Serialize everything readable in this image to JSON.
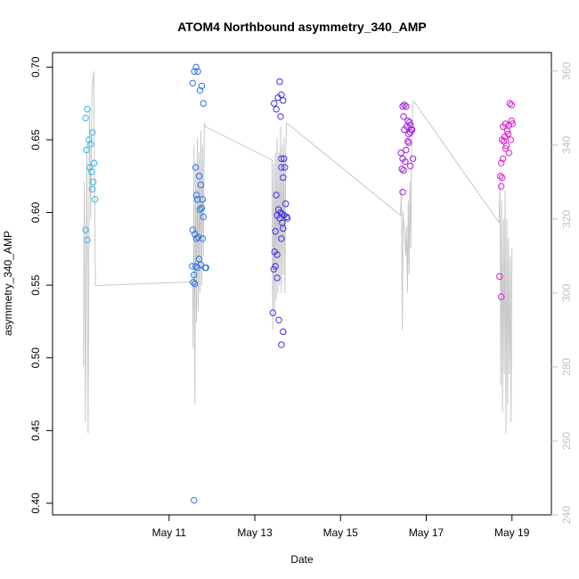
{
  "chart_data": {
    "type": "scatter",
    "title": "ATOM4 Northbound asymmetry_340_AMP",
    "xlabel": "Date",
    "ylabel": "asymmetry_340_AMP",
    "x_date_start": "2015-05-09",
    "xlim_days": [
      -0.72,
      10.92
    ],
    "ylim": [
      0.392,
      0.71
    ],
    "y2lim": [
      240,
      365
    ],
    "x_ticks": [
      {
        "day": 2,
        "label": "May 11"
      },
      {
        "day": 4,
        "label": "May 13"
      },
      {
        "day": 6,
        "label": "May 15"
      },
      {
        "day": 8,
        "label": "May 17"
      },
      {
        "day": 10,
        "label": "May 19"
      }
    ],
    "y_ticks": [
      {
        "value": 0.4,
        "label": "0.40"
      },
      {
        "value": 0.45,
        "label": "0.45"
      },
      {
        "value": 0.5,
        "label": "0.50"
      },
      {
        "value": 0.55,
        "label": "0.55"
      },
      {
        "value": 0.6,
        "label": "0.60"
      },
      {
        "value": 0.65,
        "label": "0.65"
      },
      {
        "value": 0.7,
        "label": "0.70"
      }
    ],
    "y2_ticks": [
      {
        "value": 240,
        "label": "240"
      },
      {
        "value": 260,
        "label": "260"
      },
      {
        "value": 280,
        "label": "280"
      },
      {
        "value": 300,
        "label": "300"
      },
      {
        "value": 320,
        "label": "320"
      },
      {
        "value": 340,
        "label": "340"
      },
      {
        "value": 360,
        "label": "360"
      }
    ],
    "colors": {
      "line": "#c8c8c8",
      "axis": "#000000",
      "axis_right": "#bfbfbf",
      "point_gradient": [
        "#2fb6f0",
        "#2040ee",
        "#6a1ce0",
        "#b016d6",
        "#ee18d6"
      ]
    },
    "series": [
      {
        "kind": "points",
        "clusters": [
          {
            "day_center": 0.2,
            "color": "#2fb6f0",
            "points": [
              [
                0.05,
                0.665
              ],
              [
                0.09,
                0.671
              ],
              [
                0.13,
                0.65
              ],
              [
                0.17,
                0.647
              ],
              [
                0.07,
                0.643
              ],
              [
                0.21,
                0.655
              ],
              [
                0.25,
                0.634
              ],
              [
                0.15,
                0.631
              ],
              [
                0.19,
                0.628
              ],
              [
                0.23,
                0.621
              ],
              [
                0.21,
                0.616
              ],
              [
                0.27,
                0.609
              ],
              [
                0.05,
                0.588
              ],
              [
                0.09,
                0.581
              ]
            ]
          },
          {
            "day_center": 2.6,
            "color": "#2a72ec",
            "points": [
              [
                2.55,
                0.689
              ],
              [
                2.59,
                0.697
              ],
              [
                2.63,
                0.7
              ],
              [
                2.67,
                0.697
              ],
              [
                2.72,
                0.684
              ],
              [
                2.76,
                0.687
              ],
              [
                2.8,
                0.675
              ],
              [
                2.62,
                0.631
              ],
              [
                2.7,
                0.625
              ],
              [
                2.64,
                0.612
              ],
              [
                2.74,
                0.619
              ],
              [
                2.66,
                0.609
              ],
              [
                2.78,
                0.609
              ],
              [
                2.72,
                0.602
              ],
              [
                2.76,
                0.603
              ],
              [
                2.8,
                0.597
              ],
              [
                2.55,
                0.588
              ],
              [
                2.6,
                0.585
              ],
              [
                2.64,
                0.582
              ],
              [
                2.68,
                0.583
              ],
              [
                2.78,
                0.582
              ],
              [
                2.7,
                0.568
              ],
              [
                2.54,
                0.563
              ],
              [
                2.62,
                0.563
              ],
              [
                2.66,
                0.562
              ],
              [
                2.74,
                0.564
              ],
              [
                2.84,
                0.562
              ],
              [
                2.86,
                0.562
              ],
              [
                2.58,
                0.557
              ],
              [
                2.56,
                0.552
              ],
              [
                2.6,
                0.551
              ],
              [
                2.58,
                0.402
              ]
            ]
          },
          {
            "day_center": 4.6,
            "color": "#3a30e6",
            "points": [
              [
                4.45,
                0.675
              ],
              [
                4.5,
                0.671
              ],
              [
                4.54,
                0.679
              ],
              [
                4.58,
                0.69
              ],
              [
                4.62,
                0.681
              ],
              [
                4.66,
                0.677
              ],
              [
                4.6,
                0.666
              ],
              [
                4.62,
                0.637
              ],
              [
                4.68,
                0.637
              ],
              [
                4.62,
                0.631
              ],
              [
                4.7,
                0.631
              ],
              [
                4.66,
                0.624
              ],
              [
                4.72,
                0.606
              ],
              [
                4.5,
                0.612
              ],
              [
                4.64,
                0.599
              ],
              [
                4.55,
                0.602
              ],
              [
                4.6,
                0.6
              ],
              [
                4.68,
                0.598
              ],
              [
                4.52,
                0.598
              ],
              [
                4.58,
                0.596
              ],
              [
                4.74,
                0.597
              ],
              [
                4.76,
                0.596
              ],
              [
                4.64,
                0.593
              ],
              [
                4.66,
                0.589
              ],
              [
                4.48,
                0.587
              ],
              [
                4.62,
                0.582
              ],
              [
                4.46,
                0.573
              ],
              [
                4.52,
                0.571
              ],
              [
                4.44,
                0.561
              ],
              [
                4.48,
                0.563
              ],
              [
                4.52,
                0.555
              ],
              [
                4.42,
                0.531
              ],
              [
                4.56,
                0.526
              ],
              [
                4.66,
                0.518
              ],
              [
                4.62,
                0.509
              ]
            ]
          },
          {
            "day_center": 7.6,
            "color": "#a01cdc",
            "points": [
              [
                7.45,
                0.673
              ],
              [
                7.49,
                0.674
              ],
              [
                7.53,
                0.673
              ],
              [
                7.47,
                0.666
              ],
              [
                7.57,
                0.663
              ],
              [
                7.61,
                0.662
              ],
              [
                7.49,
                0.657
              ],
              [
                7.55,
                0.659
              ],
              [
                7.63,
                0.66
              ],
              [
                7.65,
                0.657
              ],
              [
                7.59,
                0.654
              ],
              [
                7.67,
                0.657
              ],
              [
                7.63,
                0.655
              ],
              [
                7.57,
                0.649
              ],
              [
                7.59,
                0.648
              ],
              [
                7.41,
                0.641
              ],
              [
                7.53,
                0.643
              ],
              [
                7.45,
                0.637
              ],
              [
                7.51,
                0.635
              ],
              [
                7.69,
                0.637
              ],
              [
                7.43,
                0.63
              ],
              [
                7.63,
                0.632
              ],
              [
                7.47,
                0.629
              ],
              [
                7.45,
                0.614
              ]
            ]
          },
          {
            "day_center": 9.85,
            "color": "#e018d6",
            "points": [
              [
                9.95,
                0.675
              ],
              [
                9.99,
                0.674
              ],
              [
                9.79,
                0.659
              ],
              [
                9.85,
                0.661
              ],
              [
                9.93,
                0.66
              ],
              [
                9.99,
                0.663
              ],
              [
                10.01,
                0.661
              ],
              [
                9.89,
                0.656
              ],
              [
                9.83,
                0.652
              ],
              [
                9.91,
                0.654
              ],
              [
                9.77,
                0.65
              ],
              [
                9.81,
                0.649
              ],
              [
                9.97,
                0.65
              ],
              [
                9.87,
                0.646
              ],
              [
                9.85,
                0.644
              ],
              [
                9.93,
                0.641
              ],
              [
                9.79,
                0.637
              ],
              [
                9.75,
                0.634
              ],
              [
                9.73,
                0.625
              ],
              [
                9.77,
                0.624
              ],
              [
                9.75,
                0.618
              ],
              [
                9.71,
                0.556
              ],
              [
                9.75,
                0.542
              ]
            ]
          }
        ]
      },
      {
        "kind": "line",
        "axis": "right",
        "segments": [
          [
            [
              0.0,
              280
            ],
            [
              0.02,
              330
            ],
            [
              0.05,
              265
            ],
            [
              0.08,
              340
            ],
            [
              0.11,
              262
            ],
            [
              0.14,
              350
            ],
            [
              0.17,
              320
            ],
            [
              0.2,
              355
            ],
            [
              0.24,
              360
            ],
            [
              0.28,
              302
            ]
          ],
          [
            [
              0.28,
              302
            ],
            [
              2.55,
              303
            ]
          ],
          [
            [
              2.55,
              303
            ],
            [
              2.56,
              285
            ],
            [
              2.58,
              340
            ],
            [
              2.6,
              270
            ],
            [
              2.62,
              335
            ],
            [
              2.64,
              292
            ],
            [
              2.66,
              342
            ],
            [
              2.68,
              295
            ],
            [
              2.7,
              338
            ],
            [
              2.72,
              300
            ],
            [
              2.74,
              344
            ],
            [
              2.76,
              302
            ],
            [
              2.78,
              340
            ],
            [
              2.8,
              310
            ],
            [
              2.82,
              346
            ],
            [
              2.84,
              345
            ]
          ],
          [
            [
              2.84,
              345
            ],
            [
              4.4,
              336
            ]
          ],
          [
            [
              4.4,
              336
            ],
            [
              4.42,
              290
            ],
            [
              4.44,
              335
            ],
            [
              4.46,
              295
            ],
            [
              4.48,
              338
            ],
            [
              4.5,
              298
            ],
            [
              4.52,
              342
            ],
            [
              4.54,
              300
            ],
            [
              4.56,
              338
            ],
            [
              4.58,
              302
            ],
            [
              4.6,
              345
            ],
            [
              4.62,
              300
            ],
            [
              4.64,
              340
            ],
            [
              4.66,
              305
            ],
            [
              4.68,
              342
            ],
            [
              4.7,
              300
            ],
            [
              4.72,
              338
            ],
            [
              4.74,
              346
            ]
          ],
          [
            [
              4.74,
              346
            ],
            [
              7.4,
              321
            ]
          ],
          [
            [
              7.4,
              321
            ],
            [
              7.42,
              328
            ],
            [
              7.44,
              290
            ],
            [
              7.46,
              322
            ],
            [
              7.48,
              318
            ],
            [
              7.5,
              315
            ],
            [
              7.52,
              310
            ],
            [
              7.54,
              318
            ],
            [
              7.56,
              300
            ],
            [
              7.58,
              325
            ],
            [
              7.6,
              305
            ],
            [
              7.62,
              330
            ],
            [
              7.64,
              312
            ],
            [
              7.66,
              340
            ],
            [
              7.68,
              350
            ],
            [
              7.7,
              352
            ]
          ],
          [
            [
              7.7,
              352
            ],
            [
              9.7,
              319
            ]
          ],
          [
            [
              9.7,
              319
            ],
            [
              9.72,
              330
            ],
            [
              9.74,
              275
            ],
            [
              9.76,
              325
            ],
            [
              9.78,
              268
            ],
            [
              9.8,
              320
            ],
            [
              9.82,
              278
            ],
            [
              9.84,
              328
            ],
            [
              9.86,
              262
            ],
            [
              9.88,
              320
            ],
            [
              9.9,
              270
            ],
            [
              9.92,
              315
            ],
            [
              9.94,
              278
            ],
            [
              9.96,
              310
            ],
            [
              9.98,
              265
            ],
            [
              10.0,
              312
            ]
          ]
        ]
      }
    ]
  }
}
